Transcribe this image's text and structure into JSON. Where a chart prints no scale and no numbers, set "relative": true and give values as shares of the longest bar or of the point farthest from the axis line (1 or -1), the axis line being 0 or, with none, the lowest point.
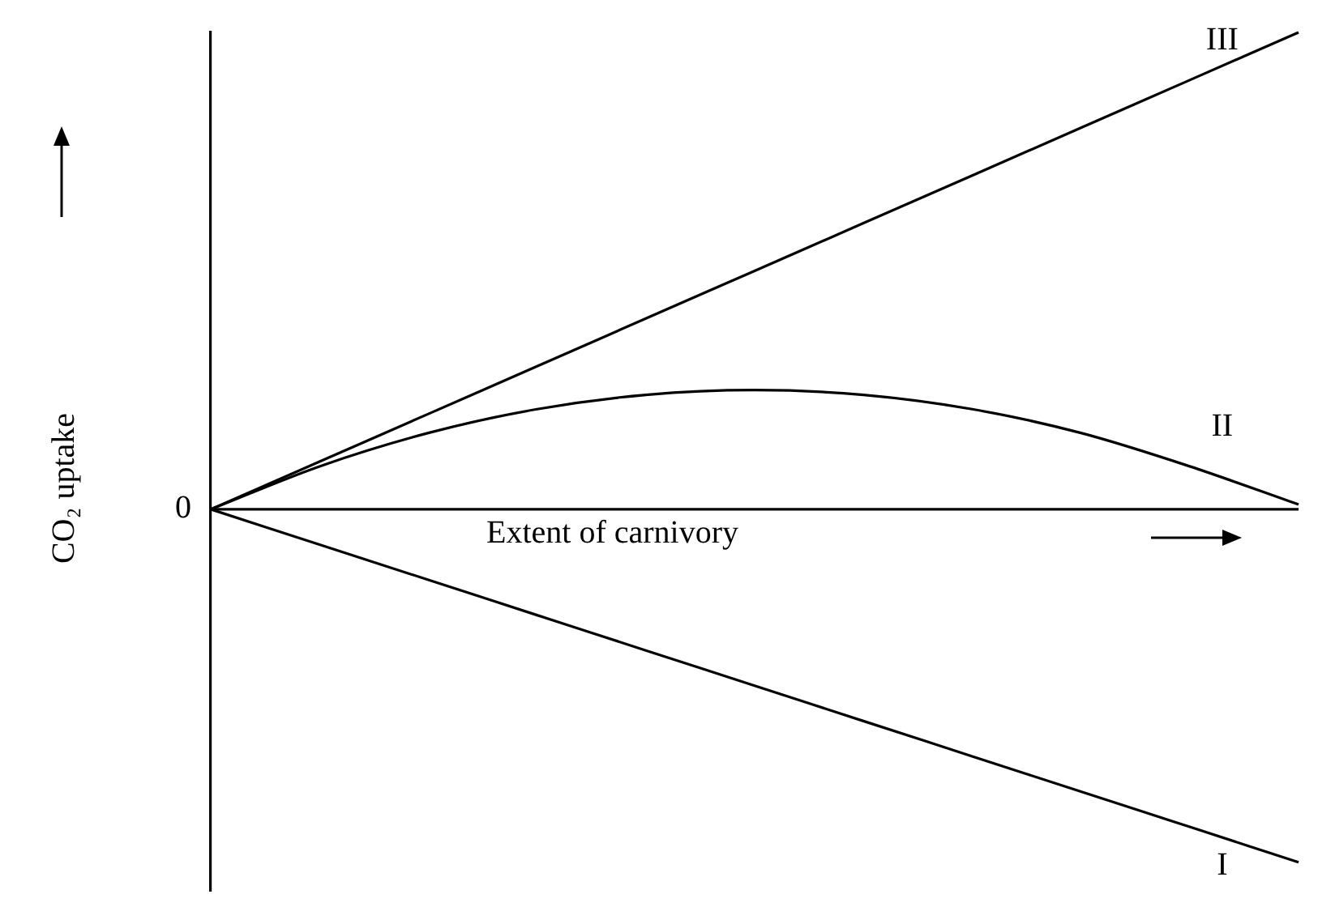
{
  "chart_data": {
    "type": "line",
    "relative": true,
    "xlabel": "Extent of carnivory",
    "ylabel": "CO₂ uptake",
    "categories": [
      null,
      null,
      null,
      null,
      null,
      null,
      null,
      null,
      null,
      null,
      null
    ],
    "series": [
      {
        "name": "III",
        "color": "#000000",
        "values": [
          0,
          0.1,
          0.2,
          0.3,
          0.4,
          0.5,
          0.6,
          0.7,
          0.8,
          0.9,
          1
        ]
      },
      {
        "name": "II",
        "color": "#000000",
        "values": [
          0,
          0.09,
          0.16,
          0.21,
          0.24,
          0.25,
          0.24,
          0.21,
          0.16,
          0.09,
          0.01
        ]
      },
      {
        "name": "I",
        "color": "#000000",
        "values": [
          0,
          -0.074,
          -0.148,
          -0.222,
          -0.296,
          -0.37,
          -0.444,
          -0.518,
          -0.592,
          -0.666,
          -0.74
        ]
      }
    ],
    "ref_lines": [
      {
        "axis": "y",
        "value": 0,
        "label": "0"
      }
    ],
    "grid": false,
    "legend": false,
    "marker": "none",
    "line_style": "solid"
  }
}
